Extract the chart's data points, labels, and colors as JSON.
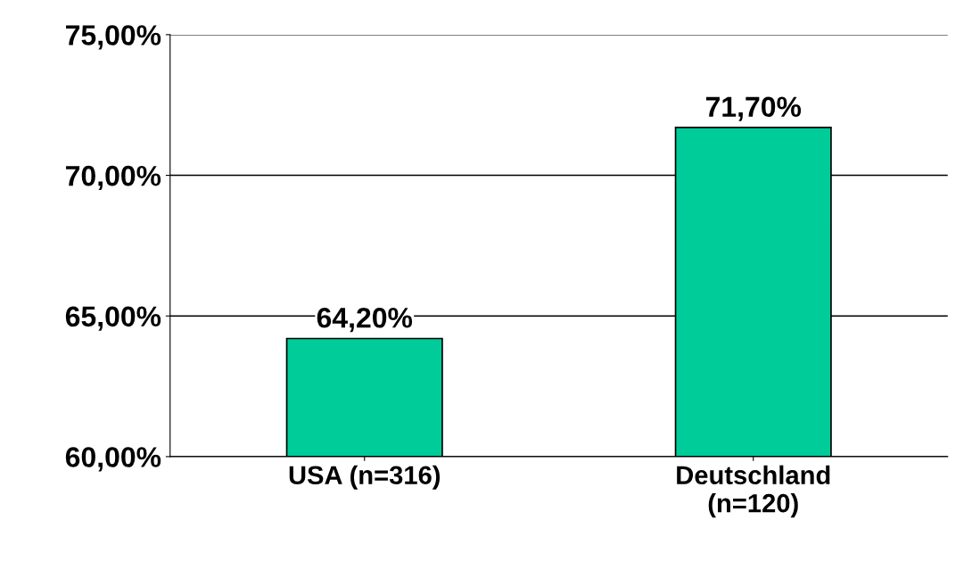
{
  "chart_data": {
    "type": "bar",
    "categories": [
      "USA (n=316)",
      "Deutschland\n(n=120)"
    ],
    "values": [
      64.2,
      71.7
    ],
    "value_labels": [
      "64,20%",
      "71,70%"
    ],
    "color": "#00cc99",
    "ylim": [
      60,
      75
    ],
    "yticks": [
      {
        "value": 60,
        "label": "60,00%"
      },
      {
        "value": 65,
        "label": "65,00%"
      },
      {
        "value": 70,
        "label": "70,00%"
      },
      {
        "value": 75,
        "label": "75,00%"
      }
    ],
    "grid": "y"
  }
}
